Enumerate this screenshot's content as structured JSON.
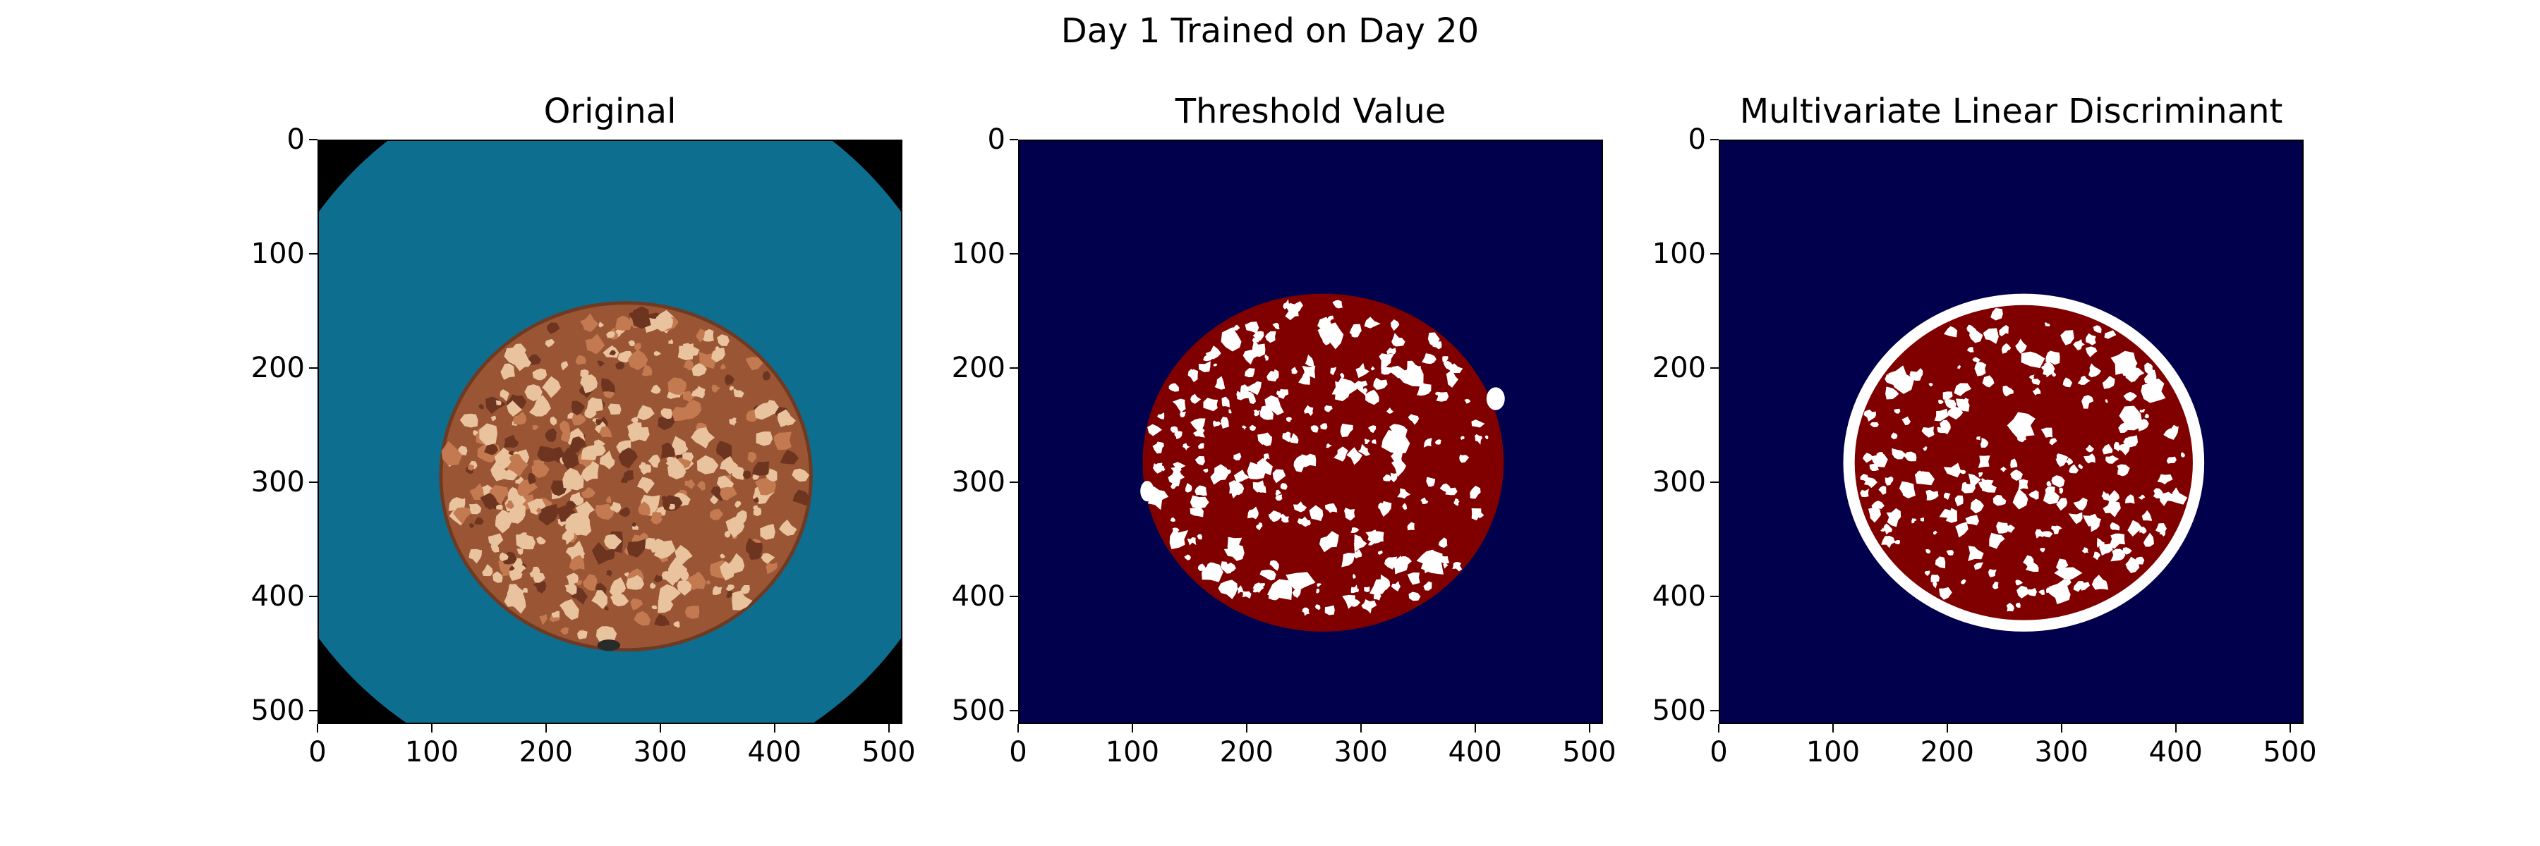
{
  "figure": {
    "suptitle": "Day 1 Trained on Day 20"
  },
  "chart_data": [
    {
      "type": "image",
      "title": "Original",
      "xlim": [
        0,
        512
      ],
      "ylim": [
        512,
        0
      ],
      "xticks": [
        0,
        100,
        200,
        300,
        400,
        500
      ],
      "yticks": [
        0,
        100,
        200,
        300,
        400,
        500
      ],
      "content": "photo of sausage slice on blue dish",
      "colors": {
        "background": "#000000",
        "dish": "#0e6e90",
        "meat": "#9a5535",
        "fat": "#e8c39e"
      }
    },
    {
      "type": "image",
      "title": "Threshold Value",
      "xlim": [
        0,
        512
      ],
      "ylim": [
        512,
        0
      ],
      "xticks": [
        0,
        100,
        200,
        300,
        400,
        500
      ],
      "yticks": [
        0,
        100,
        200,
        300,
        400,
        500
      ],
      "content": "binary segmentation mask",
      "colors": {
        "background": "#00004c",
        "meat": "#800000",
        "fat": "#ffffff"
      }
    },
    {
      "type": "image",
      "title": "Multivariate Linear Discriminant",
      "xlim": [
        0,
        512
      ],
      "ylim": [
        512,
        0
      ],
      "xticks": [
        0,
        100,
        200,
        300,
        400,
        500
      ],
      "yticks": [
        0,
        100,
        200,
        300,
        400,
        500
      ],
      "content": "LDA segmentation mask",
      "colors": {
        "background": "#00004c",
        "meat": "#800000",
        "fat": "#ffffff"
      }
    }
  ]
}
